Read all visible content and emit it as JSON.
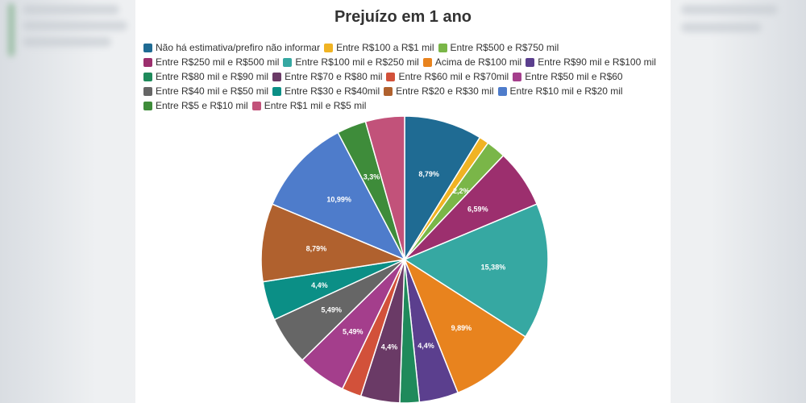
{
  "chart_data": {
    "type": "pie",
    "title": "Prejuízo em 1 ano",
    "legend_position": "top",
    "slices": [
      {
        "label": "Não há estimativa/prefiro não informar",
        "value": 8.79,
        "color": "#1f6b93",
        "value_label": "8,79%"
      },
      {
        "label": "Entre R$100 a R$1 mil",
        "value": 1.1,
        "color": "#f0b323",
        "value_label": ""
      },
      {
        "label": "Entre R$500 e R$750 mil",
        "value": 2.2,
        "color": "#7ab648",
        "value_label": "2,2%"
      },
      {
        "label": "Entre R$250 mil e R$500 mil",
        "value": 6.59,
        "color": "#9c2f6e",
        "value_label": "6,59%"
      },
      {
        "label": "Entre R$100 mil e R$250 mil",
        "value": 15.38,
        "color": "#36a8a2",
        "value_label": "15,38%"
      },
      {
        "label": "Acima de R$100 mil",
        "value": 9.89,
        "color": "#e8831e",
        "value_label": "9,89%"
      },
      {
        "label": "Entre R$90 mil e R$100 mil",
        "value": 4.4,
        "color": "#5b3f8e",
        "value_label": "4,4%"
      },
      {
        "label": "Entre R$80 mil e R$90 mil",
        "value": 2.2,
        "color": "#1f8a5b",
        "value_label": ""
      },
      {
        "label": "Entre R$70 e R$80 mil",
        "value": 4.4,
        "color": "#6a3a66",
        "value_label": "4,4%"
      },
      {
        "label": "Entre R$60 mil e R$70mil",
        "value": 2.2,
        "color": "#d2513a",
        "value_label": ""
      },
      {
        "label": "Entre R$50 mil e R$60",
        "value": 5.49,
        "color": "#a43e8c",
        "value_label": "5,49%"
      },
      {
        "label": "Entre R$40 mil e R$50 mil",
        "value": 5.49,
        "color": "#666666",
        "value_label": "5,49%"
      },
      {
        "label": "Entre R$30 e R$40mil",
        "value": 4.4,
        "color": "#0b8f86",
        "value_label": "4,4%"
      },
      {
        "label": "Entre R$20 e R$30 mil",
        "value": 8.79,
        "color": "#b0612e",
        "value_label": "8,79%"
      },
      {
        "label": "Entre R$10 mil e R$20 mil",
        "value": 10.99,
        "color": "#4e7ccb",
        "value_label": "10,99%"
      },
      {
        "label": "Entre R$5 e R$10 mil",
        "value": 3.3,
        "color": "#3e8c3a",
        "value_label": "3,3%"
      },
      {
        "label": "Entre R$1 mil e R$5 mil",
        "value": 4.4,
        "color": "#c2527a",
        "value_label": ""
      }
    ]
  }
}
